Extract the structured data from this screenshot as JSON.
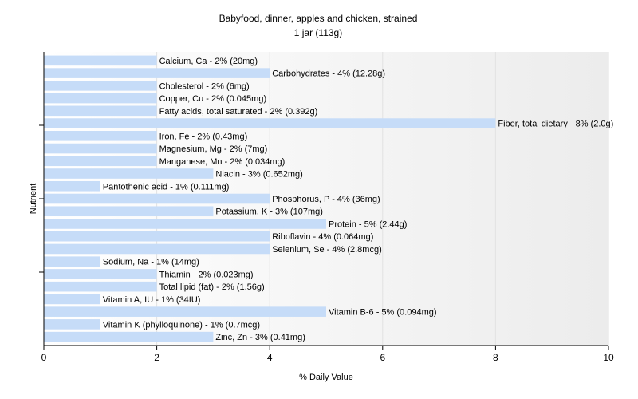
{
  "chart_data": {
    "type": "bar",
    "orientation": "horizontal",
    "title": "Babyfood, dinner, apples and chicken, strained",
    "subtitle": "1 jar (113g)",
    "xlabel": "% Daily Value",
    "ylabel": "Nutrient",
    "xlim": [
      0,
      10
    ],
    "xticks": [
      "0",
      "2",
      "4",
      "6",
      "8",
      "10"
    ],
    "grid": true,
    "bar_color": "#c6dcf8",
    "categories": [
      "Calcium, Ca",
      "Carbohydrates",
      "Cholesterol",
      "Copper, Cu",
      "Fatty acids, total saturated",
      "Fiber, total dietary",
      "Iron, Fe",
      "Magnesium, Mg",
      "Manganese, Mn",
      "Niacin",
      "Pantothenic acid",
      "Phosphorus, P",
      "Potassium, K",
      "Protein",
      "Riboflavin",
      "Selenium, Se",
      "Sodium, Na",
      "Thiamin",
      "Total lipid (fat)",
      "Vitamin A, IU",
      "Vitamin B-6",
      "Vitamin K (phylloquinone)",
      "Zinc, Zn"
    ],
    "values": [
      2,
      4,
      2,
      2,
      2,
      8,
      2,
      2,
      2,
      3,
      1,
      4,
      3,
      5,
      4,
      4,
      1,
      2,
      2,
      1,
      5,
      1,
      3
    ],
    "labels": [
      "Calcium, Ca - 2% (20mg)",
      "Carbohydrates - 4% (12.28g)",
      "Cholesterol - 2% (6mg)",
      "Copper, Cu - 2% (0.045mg)",
      "Fatty acids, total saturated - 2% (0.392g)",
      "Fiber, total dietary - 8% (2.0g)",
      "Iron, Fe - 2% (0.43mg)",
      "Magnesium, Mg - 2% (7mg)",
      "Manganese, Mn - 2% (0.034mg)",
      "Niacin - 3% (0.652mg)",
      "Pantothenic acid - 1% (0.111mg)",
      "Phosphorus, P - 4% (36mg)",
      "Potassium, K - 3% (107mg)",
      "Protein - 5% (2.44g)",
      "Riboflavin - 4% (0.064mg)",
      "Selenium, Se - 4% (2.8mcg)",
      "Sodium, Na - 1% (14mg)",
      "Thiamin - 2% (0.023mg)",
      "Total lipid (fat) - 2% (1.56g)",
      "Vitamin A, IU - 1% (34IU)",
      "Vitamin B-6 - 5% (0.094mg)",
      "Vitamin K (phylloquinone) - 1% (0.7mcg)",
      "Zinc, Zn - 3% (0.41mg)"
    ]
  }
}
